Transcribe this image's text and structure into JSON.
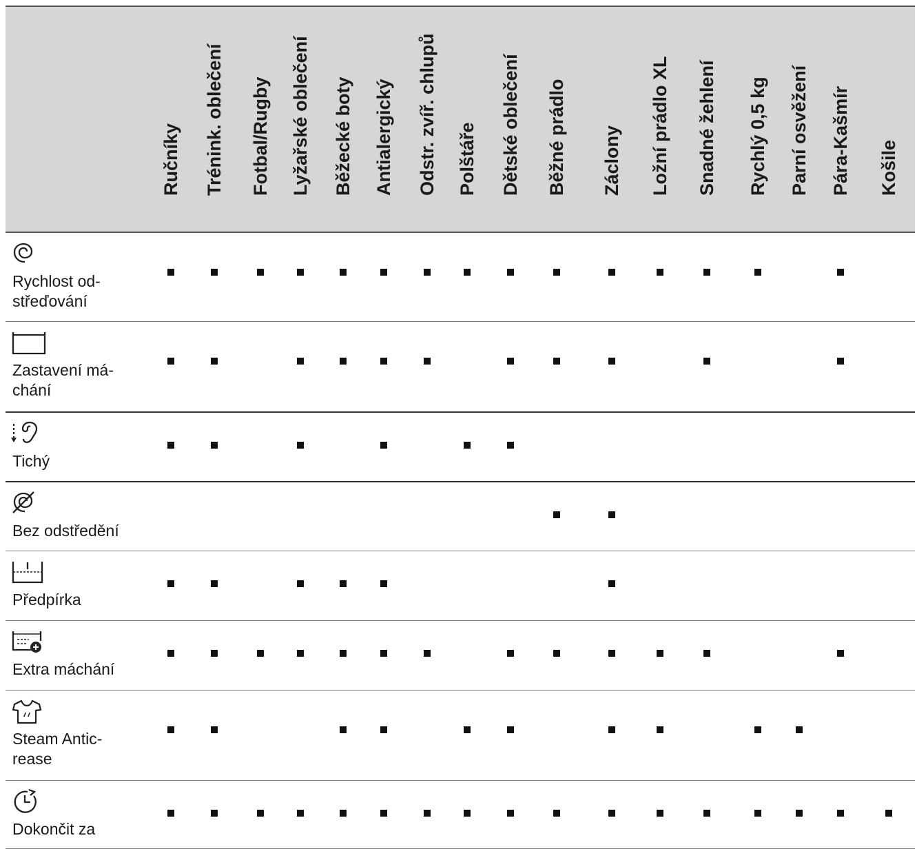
{
  "columns": [
    "Ručníky",
    "Trénink. oblečení",
    "Fotbal/Rugby",
    "Lyžařské oblečení",
    "Běžecké boty",
    "Antialergický",
    "Odstr. zvíř. chlupů",
    "Polštáře",
    "Dětské oblečení",
    "Běžné prádlo",
    "Záclony",
    "Ložní prádlo XL",
    "Snadné žehlení",
    "Rychlý 0,5 kg",
    "Parní osvěžení",
    "Pára-Kašmír",
    "Košile"
  ],
  "rows": [
    {
      "icon": "spin-speed-icon",
      "label_line1": "Rychlost od-",
      "label_line2": "střeďování",
      "marks": [
        1,
        1,
        1,
        1,
        1,
        1,
        1,
        1,
        1,
        1,
        1,
        1,
        1,
        1,
        0,
        1,
        0
      ]
    },
    {
      "icon": "rinse-hold-icon",
      "label_line1": "Zastavení má-",
      "label_line2": "chání",
      "marks": [
        1,
        1,
        0,
        1,
        1,
        1,
        1,
        0,
        1,
        1,
        1,
        0,
        1,
        0,
        0,
        1,
        0
      ]
    },
    {
      "icon": "silent-ear-icon",
      "label_line1": "Tichý",
      "label_line2": "",
      "marks": [
        1,
        1,
        0,
        1,
        0,
        1,
        0,
        1,
        1,
        0,
        0,
        0,
        0,
        0,
        0,
        0,
        0
      ]
    },
    {
      "icon": "no-spin-icon",
      "label_line1": "Bez odstředění",
      "label_line2": "",
      "marks": [
        0,
        0,
        0,
        0,
        0,
        0,
        0,
        0,
        0,
        1,
        1,
        0,
        0,
        0,
        0,
        0,
        0
      ]
    },
    {
      "icon": "prewash-tub-icon",
      "label_line1": "Předpírka",
      "label_line2": "",
      "marks": [
        1,
        1,
        0,
        1,
        1,
        1,
        0,
        0,
        0,
        0,
        1,
        0,
        0,
        0,
        0,
        0,
        0
      ]
    },
    {
      "icon": "extra-rinse-icon",
      "label_line1": "Extra máchání",
      "label_line2": "",
      "marks": [
        1,
        1,
        1,
        1,
        1,
        1,
        1,
        0,
        1,
        1,
        1,
        1,
        1,
        0,
        0,
        1,
        0
      ]
    },
    {
      "icon": "shirt-steam-icon",
      "label_line1": "Steam Antic-",
      "label_line2": "rease",
      "marks": [
        1,
        1,
        0,
        0,
        1,
        1,
        0,
        1,
        1,
        0,
        1,
        1,
        0,
        1,
        1,
        0,
        0
      ]
    },
    {
      "icon": "clock-finish-icon",
      "label_line1": "Dokončit za",
      "label_line2": "",
      "marks": [
        1,
        1,
        1,
        1,
        1,
        1,
        1,
        1,
        1,
        1,
        1,
        1,
        1,
        1,
        1,
        1,
        1
      ]
    }
  ]
}
